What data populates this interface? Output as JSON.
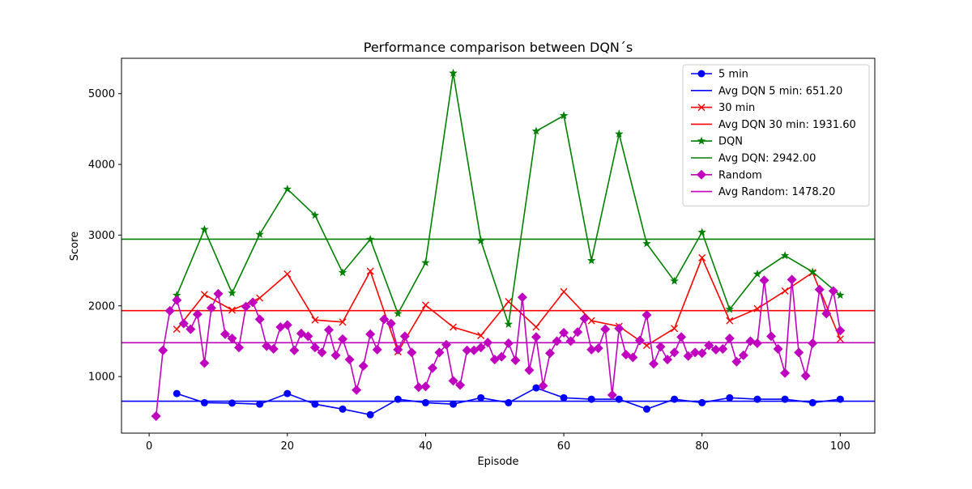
{
  "chart_data": {
    "type": "line",
    "title": "Performance comparison between DQN´s",
    "xlabel": "Episode",
    "ylabel": "Score",
    "xlim": [
      -4,
      105
    ],
    "ylim": [
      200,
      5500
    ],
    "xticks": [
      0,
      20,
      40,
      60,
      80,
      100
    ],
    "yticks": [
      1000,
      2000,
      3000,
      4000,
      5000
    ],
    "grid": false,
    "legend_position": "top-right",
    "series": [
      {
        "name": "5 min",
        "color": "#0000ff",
        "marker": "circle",
        "x": [
          4,
          8,
          12,
          16,
          20,
          24,
          28,
          32,
          36,
          40,
          44,
          48,
          52,
          56,
          60,
          64,
          68,
          72,
          76,
          80,
          84,
          88,
          92,
          96,
          100
        ],
        "y": [
          760,
          630,
          625,
          610,
          760,
          610,
          540,
          460,
          680,
          630,
          610,
          700,
          630,
          840,
          700,
          680,
          680,
          540,
          680,
          630,
          700,
          680,
          680,
          630,
          680
        ]
      },
      {
        "name": "Avg DQN 5 min: 651.20",
        "color": "#0000ff",
        "hline": 651.2
      },
      {
        "name": "30 min",
        "color": "#ff0000",
        "marker": "x",
        "x": [
          4,
          8,
          12,
          16,
          20,
          24,
          28,
          32,
          36,
          40,
          44,
          48,
          52,
          56,
          60,
          64,
          68,
          72,
          76,
          80,
          84,
          88,
          92,
          96,
          100
        ],
        "y": [
          1670,
          2160,
          1940,
          2110,
          2450,
          1800,
          1770,
          2490,
          1350,
          2010,
          1700,
          1580,
          2060,
          1700,
          2200,
          1790,
          1710,
          1440,
          1680,
          2680,
          1790,
          1960,
          2210,
          2470,
          1530
        ]
      },
      {
        "name": "Avg DQN 30 min: 1931.60",
        "color": "#ff0000",
        "hline": 1931.6
      },
      {
        "name": "DQN",
        "color": "#008000",
        "marker": "star",
        "x": [
          4,
          8,
          12,
          16,
          20,
          24,
          28,
          32,
          36,
          40,
          44,
          48,
          52,
          56,
          60,
          64,
          68,
          72,
          76,
          80,
          84,
          88,
          92,
          96,
          100
        ],
        "y": [
          2150,
          3080,
          2180,
          3010,
          3650,
          3280,
          2470,
          2940,
          1890,
          2610,
          5290,
          2920,
          1740,
          4470,
          4690,
          2640,
          4430,
          2880,
          2350,
          3040,
          1950,
          2450,
          2710,
          2480,
          2150
        ]
      },
      {
        "name": "Avg DQN: 2942.00",
        "color": "#008000",
        "hline": 2942.0
      },
      {
        "name": "Random",
        "color": "#bf00bf",
        "marker": "diamond",
        "x": [
          1,
          2,
          3,
          4,
          5,
          6,
          7,
          8,
          9,
          10,
          11,
          12,
          13,
          14,
          15,
          16,
          17,
          18,
          19,
          20,
          21,
          22,
          23,
          24,
          25,
          26,
          27,
          28,
          29,
          30,
          31,
          32,
          33,
          34,
          35,
          36,
          37,
          38,
          39,
          40,
          41,
          42,
          43,
          44,
          45,
          46,
          47,
          48,
          49,
          50,
          51,
          52,
          53,
          54,
          55,
          56,
          57,
          58,
          59,
          60,
          61,
          62,
          63,
          64,
          65,
          66,
          67,
          68,
          69,
          70,
          71,
          72,
          73,
          74,
          75,
          76,
          77,
          78,
          79,
          80,
          81,
          82,
          83,
          84,
          85,
          86,
          87,
          88,
          89,
          90,
          91,
          92,
          93,
          94,
          95,
          96,
          97,
          98,
          99,
          100
        ],
        "y": [
          440,
          1370,
          1930,
          2080,
          1750,
          1670,
          1880,
          1190,
          1970,
          2170,
          1600,
          1540,
          1410,
          1990,
          2050,
          1810,
          1430,
          1390,
          1700,
          1730,
          1370,
          1610,
          1570,
          1410,
          1340,
          1660,
          1300,
          1530,
          1240,
          810,
          1150,
          1600,
          1380,
          1810,
          1750,
          1380,
          1570,
          1340,
          850,
          860,
          1120,
          1340,
          1450,
          940,
          880,
          1370,
          1370,
          1410,
          1480,
          1240,
          1280,
          1470,
          1230,
          2120,
          1090,
          1560,
          870,
          1330,
          1500,
          1620,
          1500,
          1630,
          1820,
          1380,
          1400,
          1670,
          740,
          1680,
          1310,
          1270,
          1510,
          1870,
          1180,
          1420,
          1240,
          1340,
          1560,
          1290,
          1340,
          1330,
          1440,
          1380,
          1390,
          1540,
          1210,
          1300,
          1500,
          1470,
          2360,
          1570,
          1390,
          1050,
          2370,
          1340,
          1010,
          1470,
          2230,
          1890,
          2210,
          1650
        ]
      },
      {
        "name": "Avg Random: 1478.20",
        "color": "#bf00bf",
        "hline": 1478.2
      }
    ]
  }
}
